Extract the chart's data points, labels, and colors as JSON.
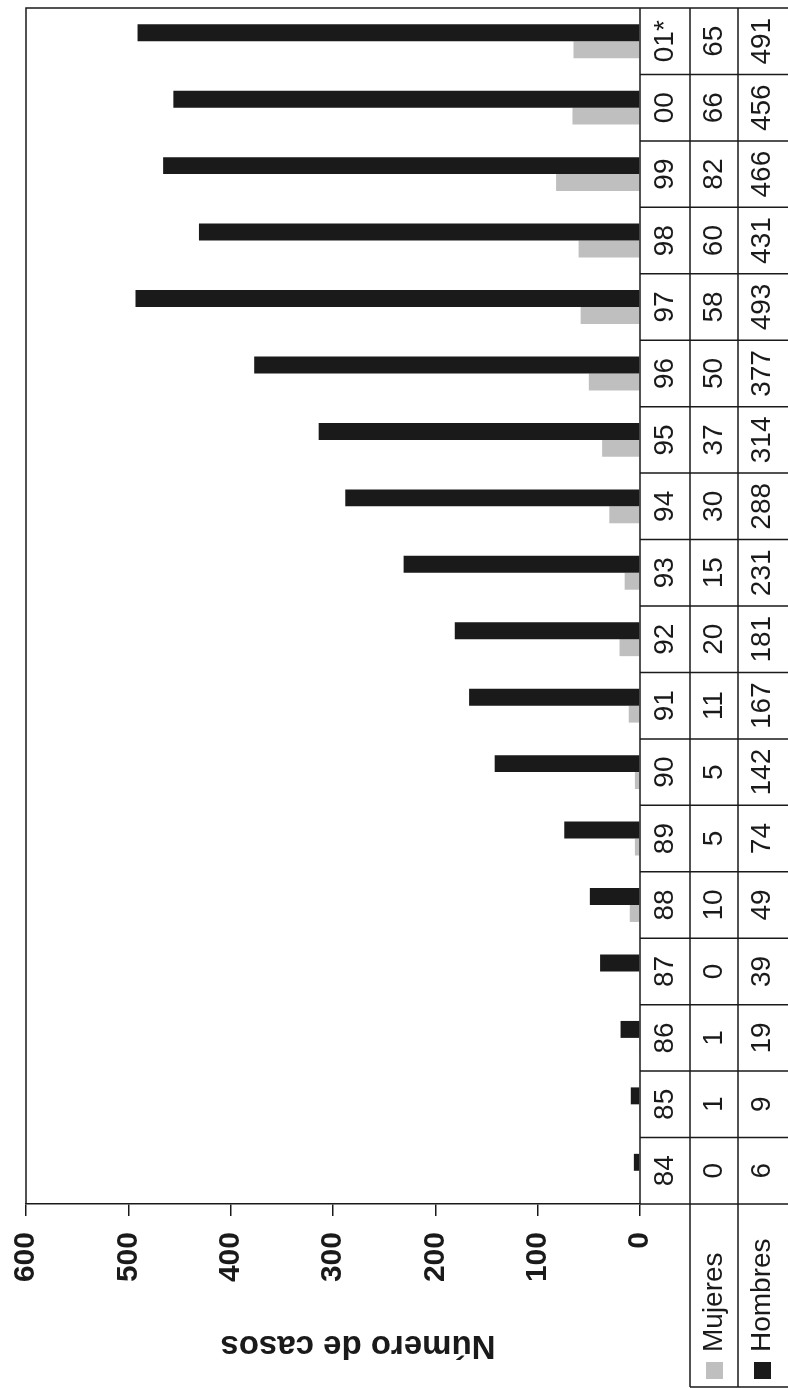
{
  "chart_data": {
    "type": "bar",
    "orientation": "horizontal",
    "xlabel": "Número de casos",
    "categories": [
      "01*",
      "00",
      "99",
      "98",
      "97",
      "96",
      "95",
      "94",
      "93",
      "92",
      "91",
      "90",
      "89",
      "88",
      "87",
      "86",
      "85",
      "84"
    ],
    "series": [
      {
        "name": "Mujeres",
        "color": "#bfbfbf",
        "values": [
          65,
          66,
          82,
          60,
          58,
          50,
          37,
          30,
          15,
          20,
          11,
          5,
          5,
          10,
          0,
          1,
          1,
          0
        ]
      },
      {
        "name": "Hombres",
        "color": "#1a1a1a",
        "values": [
          491,
          456,
          466,
          431,
          493,
          377,
          314,
          288,
          231,
          181,
          167,
          142,
          74,
          49,
          39,
          19,
          9,
          6
        ]
      }
    ],
    "xlim": [
      600,
      0
    ],
    "xticks": [
      600,
      500,
      400,
      300,
      200,
      100,
      0
    ],
    "data_labels": true,
    "legend": "bottom right"
  }
}
